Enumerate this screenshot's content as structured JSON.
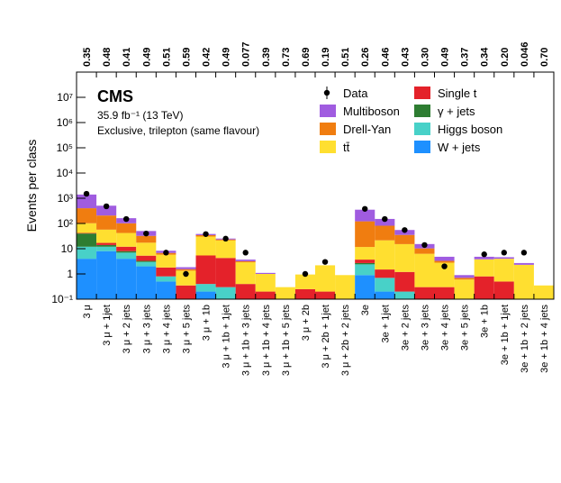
{
  "chart_data": {
    "type": "stacked_bar",
    "log_y": true,
    "experiment": "CMS",
    "lumi": "35.9 fb⁻¹ (13 TeV)",
    "subtitle": "Exclusive, trilepton (same flavour)",
    "y_label": "Events per class",
    "categories": [
      "3 μ",
      "3 μ + 1jet",
      "3 μ + 2 jets",
      "3 μ + 3 jets",
      "3 μ + 4 jets",
      "3 μ + 5 jets",
      "3 μ + 1b",
      "3 μ + 1b + 1jet",
      "3 μ + 1b + 3 jets",
      "3 μ + 1b + 4 jets",
      "3 μ + 1b + 5 jets",
      "3 μ + 2b",
      "3 μ + 2b + 1jet",
      "3 μ + 2b + 2 jets",
      "3e",
      "3e + 1jet",
      "3e + 2 jets",
      "3e + 3 jets",
      "3e + 4 jets",
      "3e + 5 jets",
      "3e + 1b",
      "3e + 1b + 1jet",
      "3e + 1b + 2 jets",
      "3e + 1b + 4 jets"
    ],
    "top_labels": [
      "0.35",
      "0.48",
      "0.41",
      "0.49",
      "0.51",
      "0.59",
      "0.42",
      "0.49",
      "0.077",
      "0.39",
      "0.73",
      "0.69",
      "0.19",
      "0.51",
      "0.26",
      "0.46",
      "0.43",
      "0.30",
      "0.49",
      "0.37",
      "0.34",
      "0.20",
      "0.046",
      "0.70"
    ],
    "ylim": [
      0.1,
      100000000
    ],
    "yticks": [
      {
        "value": 0.1,
        "label": "10⁻¹"
      },
      1,
      10,
      {
        "value": 100,
        "label": "10²"
      },
      {
        "value": 1000,
        "label": "10³"
      },
      {
        "value": 10000,
        "label": "10⁴"
      },
      {
        "value": 100000,
        "label": "10⁵"
      },
      {
        "value": 1000000,
        "label": "10⁶"
      },
      {
        "value": 10000000,
        "label": "10⁷"
      }
    ],
    "data": {
      "name": "Data",
      "color": "#000000",
      "values": [
        1500,
        480,
        150,
        40,
        7,
        1,
        38,
        25,
        7,
        null,
        null,
        1,
        3,
        null,
        380,
        150,
        55,
        14,
        2,
        null,
        6,
        7,
        7,
        null
      ]
    },
    "series": [
      {
        "name": "Multiboson",
        "color": "#a05ce0",
        "values": [
          1000,
          300,
          60,
          18,
          1.5,
          0.3,
          4,
          2,
          0.5,
          0.1,
          0,
          0,
          0,
          0,
          230,
          70,
          20,
          5,
          1.5,
          0.2,
          1,
          0.6,
          0.4,
          0
        ]
      },
      {
        "name": "Drell-Yan",
        "color": "#f07d10",
        "values": [
          300,
          150,
          60,
          15,
          1,
          0.2,
          4,
          2,
          0.3,
          0,
          0,
          0,
          0,
          0,
          110,
          60,
          20,
          4,
          0.5,
          0.1,
          0,
          0,
          0,
          0
        ]
      },
      {
        "name": "tt̄",
        "color": "#ffdf30",
        "values": [
          60,
          40,
          30,
          12,
          4,
          1,
          25,
          17,
          2.5,
          0.8,
          0.3,
          0.7,
          2,
          0.9,
          8,
          20,
          14,
          6,
          2.5,
          0.5,
          3,
          3.5,
          2.2,
          0.35
        ]
      },
      {
        "name": "Single t",
        "color": "#e4222a",
        "values": [
          2,
          3,
          4,
          2,
          1,
          0.3,
          5,
          4,
          0.4,
          0.2,
          0,
          0.25,
          0.2,
          0,
          1,
          0.8,
          1,
          0.3,
          0.3,
          0.1,
          0.8,
          0.5,
          0.1,
          0
        ]
      },
      {
        "name": "γ + jets",
        "color": "#2e7d32",
        "values": [
          28,
          2,
          1,
          0.3,
          0,
          0,
          0,
          0,
          0,
          0,
          0,
          0,
          0,
          0,
          0.3,
          0,
          0,
          0,
          0,
          0,
          0,
          0,
          0,
          0
        ]
      },
      {
        "name": "Higgs boson",
        "color": "#48d1c8",
        "values": [
          8,
          4,
          3,
          1,
          0.3,
          0,
          0.2,
          0.2,
          0,
          0,
          0,
          0,
          0,
          0,
          1.5,
          0.5,
          0.2,
          0,
          0,
          0,
          0,
          0,
          0,
          0
        ]
      },
      {
        "name": "W + jets",
        "color": "#1e90ff",
        "values": [
          4,
          8,
          4,
          2,
          0.5,
          0.05,
          0.2,
          0.1,
          0,
          0,
          0,
          0,
          0,
          0,
          0.9,
          0.2,
          0,
          0,
          0,
          0,
          0,
          0,
          0,
          0
        ]
      }
    ]
  }
}
